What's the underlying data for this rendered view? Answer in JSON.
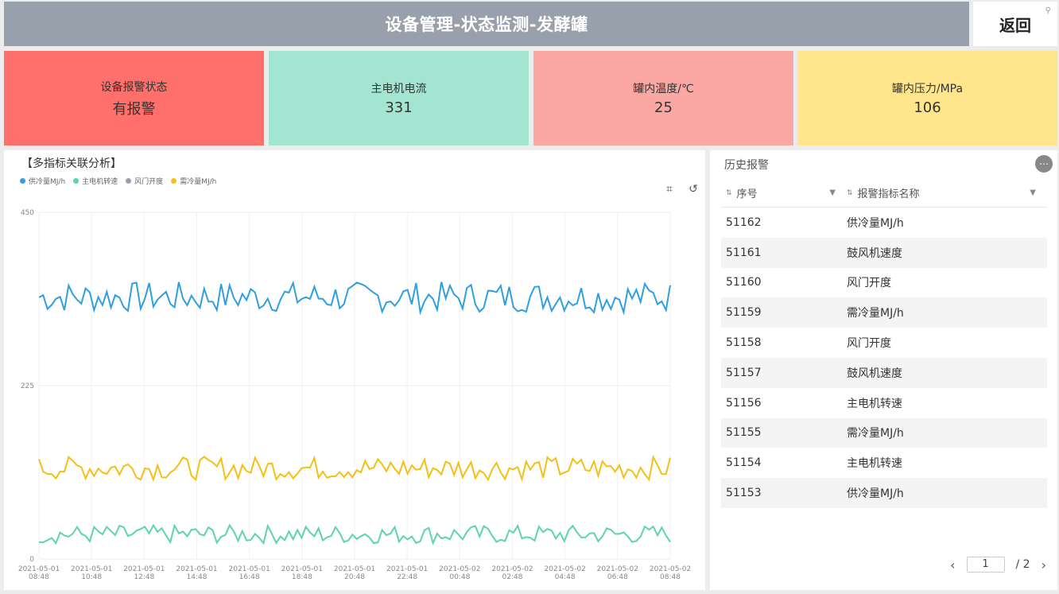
{
  "header": {
    "title": "设备管理-状态监测-发酵罐",
    "back_label": "返回"
  },
  "kpis": [
    {
      "label": "设备报警状态",
      "value": "有报警",
      "color": "#ff6f6b"
    },
    {
      "label": "主电机电流",
      "value": "331",
      "color": "#a3e5d1"
    },
    {
      "label": "罐内温度/℃",
      "value": "25",
      "color": "#fba8a4"
    },
    {
      "label": "罐内压力/MPa",
      "value": "106",
      "color": "#ffe58c"
    }
  ],
  "chart_panel": {
    "title": "【多指标关联分析】"
  },
  "chart_data": {
    "type": "line",
    "ylim": [
      0,
      450
    ],
    "yticks": [
      "0",
      "225",
      "450"
    ],
    "grid": true,
    "legend_position": "top-left",
    "x_ticks": [
      [
        "2021-05-01",
        "08:48"
      ],
      [
        "2021-05-01",
        "10:48"
      ],
      [
        "2021-05-01",
        "12:48"
      ],
      [
        "2021-05-01",
        "14:48"
      ],
      [
        "2021-05-01",
        "16:48"
      ],
      [
        "2021-05-01",
        "18:48"
      ],
      [
        "2021-05-01",
        "20:48"
      ],
      [
        "2021-05-01",
        "22:48"
      ],
      [
        "2021-05-02",
        "00:48"
      ],
      [
        "2021-05-02",
        "02:48"
      ],
      [
        "2021-05-02",
        "04:48"
      ],
      [
        "2021-05-02",
        "06:48"
      ],
      [
        "2021-05-02",
        "08:48"
      ]
    ],
    "series": [
      {
        "name": "供冷量MJ/h",
        "color": "#2f9fe0",
        "mean": 340,
        "amplitude": 20
      },
      {
        "name": "主电机转速",
        "color": "#5ed3ad",
        "mean": 32,
        "amplitude": 12
      },
      {
        "name": "风门开度",
        "color": "#98a1ab",
        "mean": null,
        "amplitude": null
      },
      {
        "name": "需冷量MJ/h",
        "color": "#f5bf17",
        "mean": 118,
        "amplitude": 15
      }
    ]
  },
  "history": {
    "title": "历史报警",
    "columns": [
      "序号",
      "报警指标名称"
    ],
    "rows": [
      [
        "51162",
        "供冷量MJ/h"
      ],
      [
        "51161",
        "鼓风机速度"
      ],
      [
        "51160",
        "风门开度"
      ],
      [
        "51159",
        "需冷量MJ/h"
      ],
      [
        "51158",
        "风门开度"
      ],
      [
        "51157",
        "鼓风机速度"
      ],
      [
        "51156",
        "主电机转速"
      ],
      [
        "51155",
        "需冷量MJ/h"
      ],
      [
        "51154",
        "主电机转速"
      ],
      [
        "51153",
        "供冷量MJ/h"
      ]
    ],
    "pager": {
      "current": "1",
      "total": "/ 2"
    }
  }
}
